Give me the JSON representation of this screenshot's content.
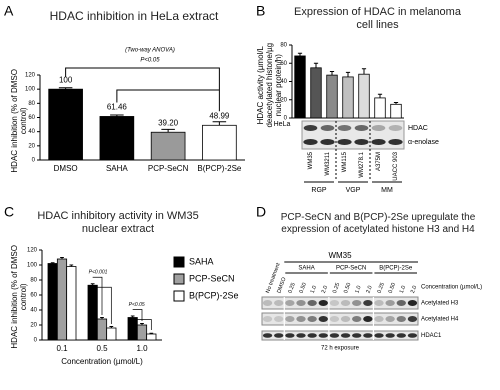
{
  "panel_labels": [
    "A",
    "B",
    "C",
    "D"
  ],
  "chart_data": [
    {
      "type": "bar",
      "title": "HDAC inhibition in HeLa extract",
      "y_label": "HDAC inhibition (% of DMSO control)",
      "categories": [
        "DMSO",
        "SAHA",
        "PCP-SeCN",
        "B(PCP)-2Se"
      ],
      "values": [
        100,
        61.46,
        39.2,
        48.99
      ],
      "value_labels": [
        "100",
        "61.46",
        "39.20",
        "48.99"
      ],
      "errors": [
        2,
        2,
        4,
        5
      ],
      "colors": [
        "#000000",
        "#000000",
        "#9a9a9a",
        "#ffffff"
      ],
      "ylim": [
        0,
        120
      ],
      "yticks": [
        0,
        20,
        40,
        60,
        80,
        100,
        120
      ],
      "annotations": [
        "(Two-way ANOVA)",
        "P<0.05"
      ]
    },
    {
      "type": "bar",
      "title": "Expression of HDAC in melanoma cell lines",
      "y_label": "HDAC activity (µmol/L deacetylated histone/µg nuclear protein/h)",
      "categories": [
        "HeLa",
        "WM35",
        "WM3211",
        "WM115",
        "WM278.1",
        "A375M",
        "UACC 903"
      ],
      "values": [
        68,
        55,
        47,
        45,
        48,
        22,
        15
      ],
      "errors": [
        3,
        5,
        4,
        5,
        6,
        4,
        2
      ],
      "colors": [
        "#000000",
        "#555555",
        "#8a8a8a",
        "#c0c0c0",
        "#dcdcdc",
        "#ffffff",
        "#ffffff"
      ],
      "ylim": [
        0,
        80
      ],
      "yticks": [
        0,
        20,
        40,
        60,
        80
      ]
    },
    {
      "type": "bar",
      "title": "HDAC inhibitory activity in WM35 nuclear extract",
      "y_label": "HDAC inhibition (% of DMSO control)",
      "x_label": "Concentration (µmol/L)",
      "categories": [
        "0.1",
        "0.5",
        "1.0"
      ],
      "series": [
        {
          "name": "SAHA",
          "color": "#000000",
          "values": [
            102,
            73,
            30
          ],
          "errors": [
            1,
            2,
            2
          ]
        },
        {
          "name": "PCP-SeCN",
          "color": "#a0a0a0",
          "values": [
            108,
            28,
            20
          ],
          "errors": [
            2,
            2,
            2
          ]
        },
        {
          "name": "B(PCP)-2Se",
          "color": "#ffffff",
          "values": [
            98,
            16,
            8
          ],
          "errors": [
            2,
            2,
            1
          ]
        }
      ],
      "ylim": [
        0,
        120
      ],
      "yticks": [
        0,
        20,
        40,
        60,
        80,
        100,
        120
      ],
      "annotations": [
        "P<0.001",
        "P<0.05"
      ]
    }
  ],
  "blot_b": {
    "rows": [
      "HDAC",
      "α-enolase"
    ],
    "groups": [
      "RGP",
      "VGP",
      "MM"
    ]
  },
  "blot_d": {
    "title": "PCP-SeCN and B(PCP)-2Se upregulate the expression of acetylated histone H3 and H4",
    "cell_line": "WM35",
    "lanes": [
      "No treatment",
      "DMSO",
      "0.25",
      "0.50",
      "1.0",
      "2.0",
      "0.25",
      "0.50",
      "1.0",
      "2.0",
      "0.25",
      "0.50",
      "1.0",
      "2.0"
    ],
    "groups": [
      "SAHA",
      "PCP-SeCN",
      "B(PCP)-2Se"
    ],
    "concentration_label": "Concentration (µmol/L)",
    "rows": [
      "Acetylated H3",
      "Acetylated H4",
      "HDAC1"
    ],
    "footer": "72 h exposure"
  }
}
